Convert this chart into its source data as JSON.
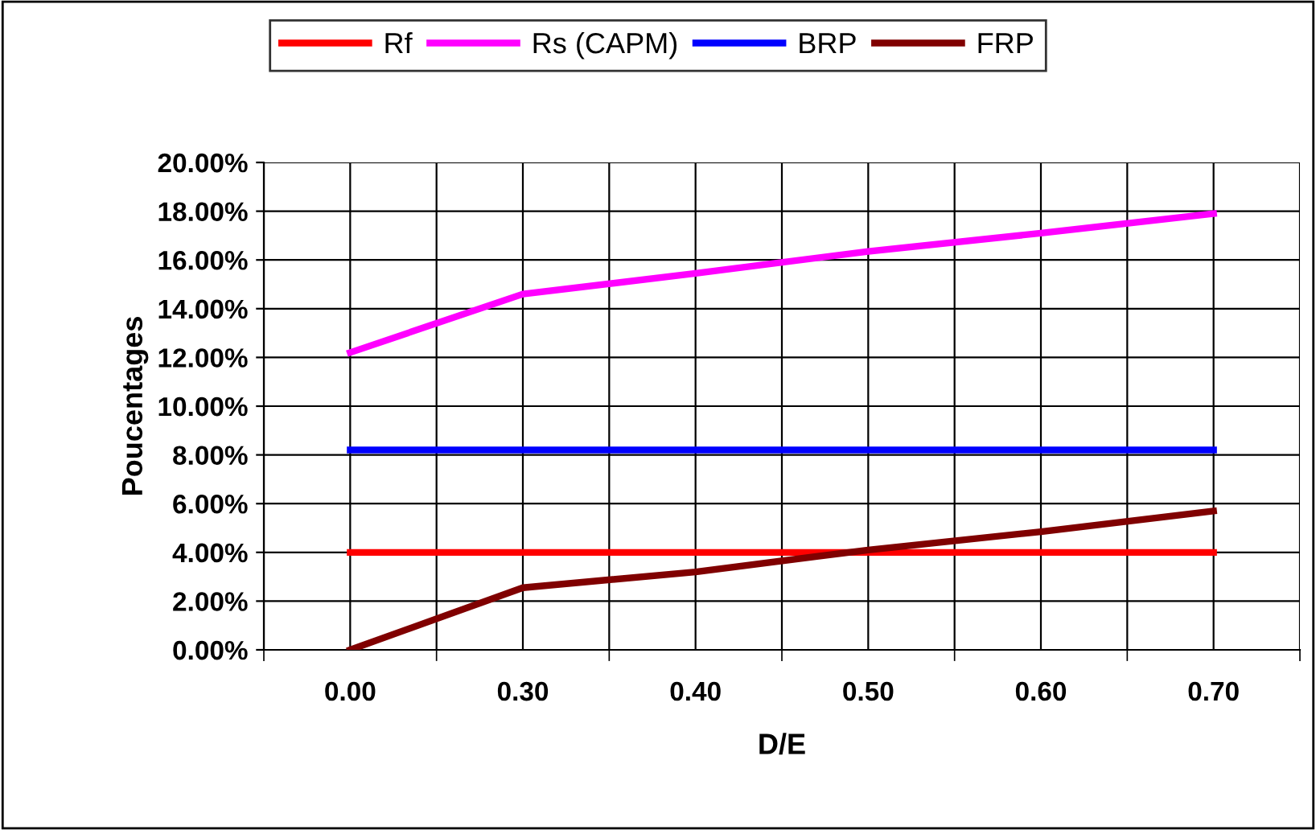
{
  "chart_data": {
    "type": "line",
    "xlabel": "D/E",
    "ylabel": "Poucentages",
    "categories": [
      "0.00",
      "0.30",
      "0.40",
      "0.50",
      "0.60",
      "0.70"
    ],
    "series": [
      {
        "name": "Rf",
        "color": "#ff0000",
        "values": [
          4.0,
          4.0,
          4.0,
          4.0,
          4.0,
          4.0
        ]
      },
      {
        "name": "Rs (CAPM)",
        "color": "#ff00ff",
        "values": [
          12.2,
          14.6,
          15.45,
          16.35,
          17.1,
          17.9
        ]
      },
      {
        "name": "BRP",
        "color": "#0000ff",
        "values": [
          8.2,
          8.2,
          8.2,
          8.2,
          8.2,
          8.2
        ]
      },
      {
        "name": "FRP",
        "color": "#800000",
        "values": [
          0,
          2.55,
          3.2,
          4.1,
          4.85,
          5.7
        ]
      }
    ],
    "ylim": [
      0,
      20
    ],
    "yticks": [
      {
        "value": 0,
        "label": "0.00%"
      },
      {
        "value": 2,
        "label": "2.00%"
      },
      {
        "value": 4,
        "label": "4.00%"
      },
      {
        "value": 6,
        "label": "6.00%"
      },
      {
        "value": 8,
        "label": "8.00%"
      },
      {
        "value": 10,
        "label": "10.00%"
      },
      {
        "value": 12,
        "label": "12.00%"
      },
      {
        "value": 14,
        "label": "14.00%"
      },
      {
        "value": 16,
        "label": "16.00%"
      },
      {
        "value": 18,
        "label": "18.00%"
      },
      {
        "value": 20,
        "label": "20.00%"
      }
    ],
    "grid": true,
    "legend": "top",
    "marker": "none",
    "line_style": "solid"
  }
}
